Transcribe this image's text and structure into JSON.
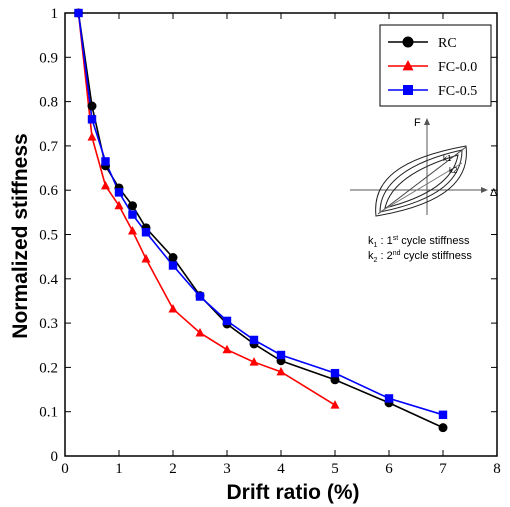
{
  "chart_data": {
    "type": "line",
    "xlabel": "Drift ratio (%)",
    "ylabel": "Normalized stiffness",
    "xlim": [
      0,
      8
    ],
    "ylim": [
      0,
      1
    ],
    "xticks": [
      "0",
      "1",
      "2",
      "3",
      "4",
      "5",
      "6",
      "7",
      "8"
    ],
    "yticks": [
      "0",
      "0.1",
      "0.2",
      "0.3",
      "0.4",
      "0.5",
      "0.6",
      "0.7",
      "0.8",
      "0.9",
      "1"
    ],
    "legend_position": "top-right",
    "grid": false,
    "series": [
      {
        "name": "RC",
        "color": "#000000",
        "marker": "circle",
        "x": [
          0.25,
          0.5,
          0.75,
          1.0,
          1.25,
          1.5,
          2.0,
          2.5,
          3.0,
          3.5,
          4.0,
          5.0,
          6.0,
          7.0
        ],
        "y": [
          1.0,
          0.79,
          0.655,
          0.605,
          0.565,
          0.515,
          0.448,
          0.362,
          0.298,
          0.253,
          0.215,
          0.172,
          0.12,
          0.064
        ]
      },
      {
        "name": "FC-0.0",
        "color": "#ff0000",
        "marker": "triangle",
        "x": [
          0.25,
          0.5,
          0.75,
          1.0,
          1.25,
          1.5,
          2.0,
          2.5,
          3.0,
          3.5,
          4.0,
          5.0
        ],
        "y": [
          1.0,
          0.72,
          0.61,
          0.565,
          0.508,
          0.445,
          0.332,
          0.278,
          0.24,
          0.212,
          0.19,
          0.115
        ]
      },
      {
        "name": "FC-0.5",
        "color": "#0000ff",
        "marker": "square",
        "x": [
          0.25,
          0.5,
          0.75,
          1.0,
          1.25,
          1.5,
          2.0,
          2.5,
          3.0,
          3.5,
          4.0,
          5.0,
          6.0,
          7.0
        ],
        "y": [
          1.0,
          0.76,
          0.665,
          0.595,
          0.545,
          0.505,
          0.43,
          0.36,
          0.305,
          0.262,
          0.228,
          0.187,
          0.13,
          0.093
        ]
      }
    ],
    "inset": {
      "force_label": "F",
      "disp_label": "Δ",
      "k1_label": "k1",
      "k2_label": "k2",
      "legend_k1_prefix": "k",
      "legend_k1_sub": "1",
      "legend_k1_text": " : 1",
      "legend_k1_sup": "st",
      "legend_k1_suffix": " cycle stiffness",
      "legend_k2_prefix": "k",
      "legend_k2_sub": "2",
      "legend_k2_text": " : 2",
      "legend_k2_sup": "nd",
      "legend_k2_suffix": " cycle stiffness"
    }
  }
}
